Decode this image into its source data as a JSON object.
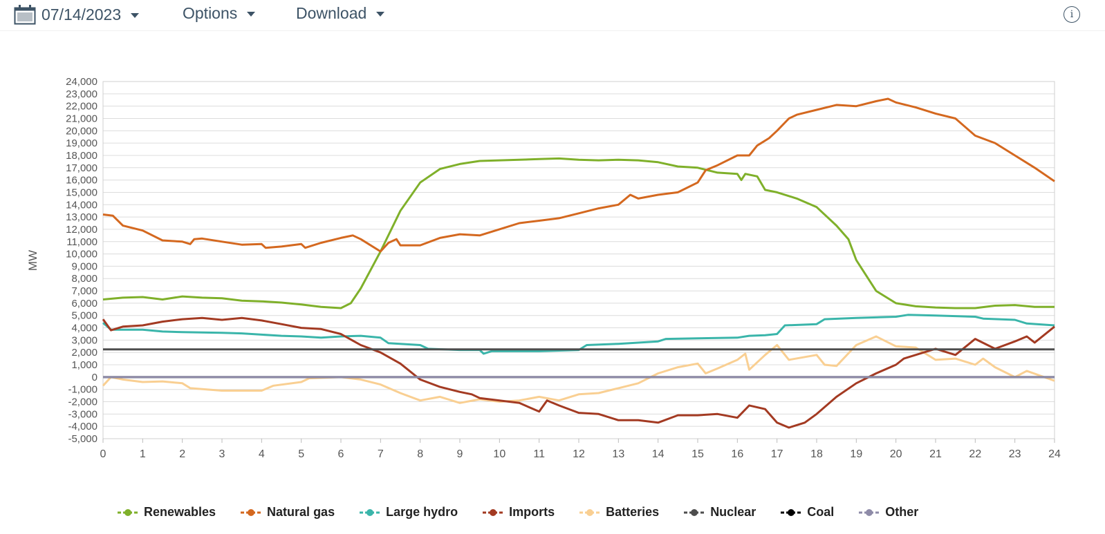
{
  "toolbar": {
    "date": "07/14/2023",
    "options_label": "Options",
    "download_label": "Download",
    "info_label": "i"
  },
  "chart_data": {
    "type": "line",
    "title": "",
    "xlabel": "",
    "ylabel": "MW",
    "xlim": [
      0,
      24
    ],
    "ylim": [
      -5000,
      24000
    ],
    "x_ticks": [
      "0",
      "1",
      "2",
      "3",
      "4",
      "5",
      "6",
      "7",
      "8",
      "9",
      "10",
      "11",
      "12",
      "13",
      "14",
      "15",
      "16",
      "17",
      "18",
      "19",
      "20",
      "21",
      "22",
      "23",
      "24"
    ],
    "y_ticks": [
      "-5,000",
      "-4,000",
      "-3,000",
      "-2,000",
      "-1,000",
      "0",
      "1,000",
      "2,000",
      "3,000",
      "4,000",
      "5,000",
      "6,000",
      "7,000",
      "8,000",
      "9,000",
      "10,000",
      "11,000",
      "12,000",
      "13,000",
      "14,000",
      "15,000",
      "16,000",
      "17,000",
      "18,000",
      "19,000",
      "20,000",
      "21,000",
      "22,000",
      "23,000",
      "24,000"
    ],
    "grid": true,
    "legend_position": "bottom",
    "series": [
      {
        "name": "Renewables",
        "color": "#7fb02a",
        "points": [
          [
            0,
            6300
          ],
          [
            0.5,
            6450
          ],
          [
            1,
            6500
          ],
          [
            1.5,
            6300
          ],
          [
            2,
            6550
          ],
          [
            2.5,
            6450
          ],
          [
            3,
            6400
          ],
          [
            3.5,
            6200
          ],
          [
            4,
            6150
          ],
          [
            4.5,
            6050
          ],
          [
            5,
            5900
          ],
          [
            5.5,
            5700
          ],
          [
            6,
            5600
          ],
          [
            6.25,
            6000
          ],
          [
            6.5,
            7200
          ],
          [
            7,
            10200
          ],
          [
            7.5,
            13500
          ],
          [
            8,
            15800
          ],
          [
            8.5,
            16900
          ],
          [
            9,
            17300
          ],
          [
            9.5,
            17550
          ],
          [
            10,
            17600
          ],
          [
            10.5,
            17650
          ],
          [
            11,
            17700
          ],
          [
            11.5,
            17750
          ],
          [
            12,
            17650
          ],
          [
            12.5,
            17600
          ],
          [
            13,
            17650
          ],
          [
            13.5,
            17600
          ],
          [
            14,
            17450
          ],
          [
            14.5,
            17100
          ],
          [
            15,
            17000
          ],
          [
            15.5,
            16600
          ],
          [
            16,
            16500
          ],
          [
            16.1,
            16000
          ],
          [
            16.2,
            16500
          ],
          [
            16.5,
            16300
          ],
          [
            16.7,
            15200
          ],
          [
            17,
            15000
          ],
          [
            17.5,
            14500
          ],
          [
            18,
            13800
          ],
          [
            18.5,
            12300
          ],
          [
            18.8,
            11200
          ],
          [
            19,
            9500
          ],
          [
            19.5,
            7000
          ],
          [
            20,
            6000
          ],
          [
            20.5,
            5750
          ],
          [
            21,
            5650
          ],
          [
            21.5,
            5600
          ],
          [
            22,
            5600
          ],
          [
            22.5,
            5800
          ],
          [
            23,
            5850
          ],
          [
            23.5,
            5700
          ],
          [
            24,
            5700
          ]
        ]
      },
      {
        "name": "Natural gas",
        "color": "#d4681f",
        "points": [
          [
            0,
            13200
          ],
          [
            0.25,
            13100
          ],
          [
            0.5,
            12300
          ],
          [
            1,
            11900
          ],
          [
            1.5,
            11100
          ],
          [
            2,
            11000
          ],
          [
            2.2,
            10800
          ],
          [
            2.3,
            11200
          ],
          [
            2.5,
            11250
          ],
          [
            3,
            11000
          ],
          [
            3.5,
            10750
          ],
          [
            4,
            10800
          ],
          [
            4.1,
            10500
          ],
          [
            4.5,
            10600
          ],
          [
            5,
            10800
          ],
          [
            5.1,
            10500
          ],
          [
            5.5,
            10900
          ],
          [
            6,
            11300
          ],
          [
            6.3,
            11500
          ],
          [
            6.5,
            11200
          ],
          [
            7,
            10200
          ],
          [
            7.2,
            10900
          ],
          [
            7.4,
            11200
          ],
          [
            7.5,
            10700
          ],
          [
            8,
            10700
          ],
          [
            8.5,
            11300
          ],
          [
            9,
            11600
          ],
          [
            9.5,
            11500
          ],
          [
            10,
            12000
          ],
          [
            10.5,
            12500
          ],
          [
            11,
            12700
          ],
          [
            11.5,
            12900
          ],
          [
            12,
            13300
          ],
          [
            12.5,
            13700
          ],
          [
            13,
            14000
          ],
          [
            13.3,
            14800
          ],
          [
            13.5,
            14500
          ],
          [
            14,
            14800
          ],
          [
            14.5,
            15000
          ],
          [
            15,
            15800
          ],
          [
            15.2,
            16800
          ],
          [
            15.5,
            17200
          ],
          [
            16,
            18000
          ],
          [
            16.3,
            18000
          ],
          [
            16.5,
            18800
          ],
          [
            16.8,
            19400
          ],
          [
            17,
            20000
          ],
          [
            17.3,
            21000
          ],
          [
            17.5,
            21300
          ],
          [
            18,
            21700
          ],
          [
            18.5,
            22100
          ],
          [
            19,
            22000
          ],
          [
            19.5,
            22400
          ],
          [
            19.8,
            22600
          ],
          [
            20,
            22300
          ],
          [
            20.5,
            21900
          ],
          [
            21,
            21400
          ],
          [
            21.5,
            21000
          ],
          [
            22,
            19600
          ],
          [
            22.5,
            19000
          ],
          [
            23,
            18000
          ],
          [
            23.5,
            17000
          ],
          [
            24,
            15900
          ]
        ]
      },
      {
        "name": "Large hydro",
        "color": "#3ab5aa",
        "points": [
          [
            0,
            4400
          ],
          [
            0.2,
            3850
          ],
          [
            1,
            3850
          ],
          [
            1.5,
            3700
          ],
          [
            2,
            3650
          ],
          [
            3,
            3600
          ],
          [
            3.5,
            3550
          ],
          [
            4,
            3450
          ],
          [
            4.5,
            3350
          ],
          [
            5,
            3300
          ],
          [
            5.5,
            3200
          ],
          [
            6,
            3300
          ],
          [
            6.5,
            3350
          ],
          [
            7,
            3200
          ],
          [
            7.2,
            2750
          ],
          [
            8,
            2600
          ],
          [
            8.2,
            2300
          ],
          [
            9,
            2200
          ],
          [
            9.5,
            2200
          ],
          [
            9.6,
            1900
          ],
          [
            9.8,
            2100
          ],
          [
            10,
            2100
          ],
          [
            11,
            2100
          ],
          [
            12,
            2200
          ],
          [
            12.2,
            2600
          ],
          [
            13,
            2700
          ],
          [
            14,
            2900
          ],
          [
            14.2,
            3100
          ],
          [
            15,
            3150
          ],
          [
            16,
            3200
          ],
          [
            16.3,
            3350
          ],
          [
            16.7,
            3400
          ],
          [
            17,
            3500
          ],
          [
            17.2,
            4200
          ],
          [
            18,
            4300
          ],
          [
            18.2,
            4700
          ],
          [
            19,
            4800
          ],
          [
            20,
            4900
          ],
          [
            20.3,
            5050
          ],
          [
            21,
            5000
          ],
          [
            22,
            4900
          ],
          [
            22.2,
            4750
          ],
          [
            23,
            4650
          ],
          [
            23.3,
            4350
          ],
          [
            24,
            4200
          ]
        ]
      },
      {
        "name": "Imports",
        "color": "#a33a22",
        "points": [
          [
            0,
            4700
          ],
          [
            0.2,
            3800
          ],
          [
            0.5,
            4100
          ],
          [
            1,
            4200
          ],
          [
            1.5,
            4500
          ],
          [
            2,
            4700
          ],
          [
            2.5,
            4800
          ],
          [
            3,
            4650
          ],
          [
            3.5,
            4800
          ],
          [
            4,
            4600
          ],
          [
            4.5,
            4300
          ],
          [
            5,
            4000
          ],
          [
            5.5,
            3900
          ],
          [
            6,
            3500
          ],
          [
            6.5,
            2600
          ],
          [
            7,
            2000
          ],
          [
            7.5,
            1100
          ],
          [
            8,
            -200
          ],
          [
            8.5,
            -800
          ],
          [
            9,
            -1200
          ],
          [
            9.3,
            -1400
          ],
          [
            9.5,
            -1700
          ],
          [
            10,
            -1900
          ],
          [
            10.5,
            -2100
          ],
          [
            11,
            -2800
          ],
          [
            11.2,
            -1900
          ],
          [
            11.5,
            -2300
          ],
          [
            12,
            -2900
          ],
          [
            12.5,
            -3000
          ],
          [
            13,
            -3500
          ],
          [
            13.5,
            -3500
          ],
          [
            14,
            -3700
          ],
          [
            14.5,
            -3100
          ],
          [
            15,
            -3100
          ],
          [
            15.5,
            -3000
          ],
          [
            16,
            -3300
          ],
          [
            16.3,
            -2300
          ],
          [
            16.7,
            -2600
          ],
          [
            17,
            -3700
          ],
          [
            17.3,
            -4100
          ],
          [
            17.7,
            -3700
          ],
          [
            18,
            -3000
          ],
          [
            18.5,
            -1600
          ],
          [
            19,
            -500
          ],
          [
            19.5,
            300
          ],
          [
            20,
            1000
          ],
          [
            20.2,
            1500
          ],
          [
            21,
            2300
          ],
          [
            21.5,
            1800
          ],
          [
            22,
            3100
          ],
          [
            22.5,
            2300
          ],
          [
            23,
            2900
          ],
          [
            23.3,
            3300
          ],
          [
            23.5,
            2800
          ],
          [
            24,
            4100
          ]
        ]
      },
      {
        "name": "Batteries",
        "color": "#f9cf92",
        "points": [
          [
            0,
            -700
          ],
          [
            0.2,
            0
          ],
          [
            0.5,
            -200
          ],
          [
            1,
            -400
          ],
          [
            1.5,
            -350
          ],
          [
            2,
            -500
          ],
          [
            2.2,
            -900
          ],
          [
            3,
            -1100
          ],
          [
            4,
            -1100
          ],
          [
            4.3,
            -700
          ],
          [
            5,
            -400
          ],
          [
            5.2,
            -100
          ],
          [
            6,
            0
          ],
          [
            6.5,
            -200
          ],
          [
            7,
            -600
          ],
          [
            7.5,
            -1300
          ],
          [
            8,
            -1900
          ],
          [
            8.5,
            -1600
          ],
          [
            9,
            -2100
          ],
          [
            9.5,
            -1800
          ],
          [
            10,
            -2000
          ],
          [
            10.5,
            -1900
          ],
          [
            11,
            -1600
          ],
          [
            11.5,
            -1900
          ],
          [
            12,
            -1400
          ],
          [
            12.5,
            -1300
          ],
          [
            13,
            -900
          ],
          [
            13.5,
            -500
          ],
          [
            14,
            300
          ],
          [
            14.5,
            800
          ],
          [
            15,
            1100
          ],
          [
            15.2,
            300
          ],
          [
            15.5,
            700
          ],
          [
            16,
            1400
          ],
          [
            16.2,
            1900
          ],
          [
            16.3,
            600
          ],
          [
            16.7,
            1800
          ],
          [
            17,
            2600
          ],
          [
            17.3,
            1400
          ],
          [
            18,
            1800
          ],
          [
            18.2,
            1000
          ],
          [
            18.5,
            900
          ],
          [
            19,
            2600
          ],
          [
            19.5,
            3300
          ],
          [
            20,
            2500
          ],
          [
            20.5,
            2400
          ],
          [
            21,
            1400
          ],
          [
            21.5,
            1500
          ],
          [
            22,
            1000
          ],
          [
            22.2,
            1500
          ],
          [
            22.5,
            800
          ],
          [
            23,
            0
          ],
          [
            23.3,
            500
          ],
          [
            24,
            -300
          ]
        ]
      },
      {
        "name": "Nuclear",
        "color": "#4d4d4d",
        "points": [
          [
            0,
            2250
          ],
          [
            24,
            2250
          ]
        ]
      },
      {
        "name": "Coal",
        "color": "#000000",
        "points": [
          [
            0,
            0
          ],
          [
            24,
            0
          ]
        ]
      },
      {
        "name": "Other",
        "color": "#8e8ba8",
        "points": [
          [
            0,
            0
          ],
          [
            24,
            0
          ]
        ]
      }
    ]
  }
}
